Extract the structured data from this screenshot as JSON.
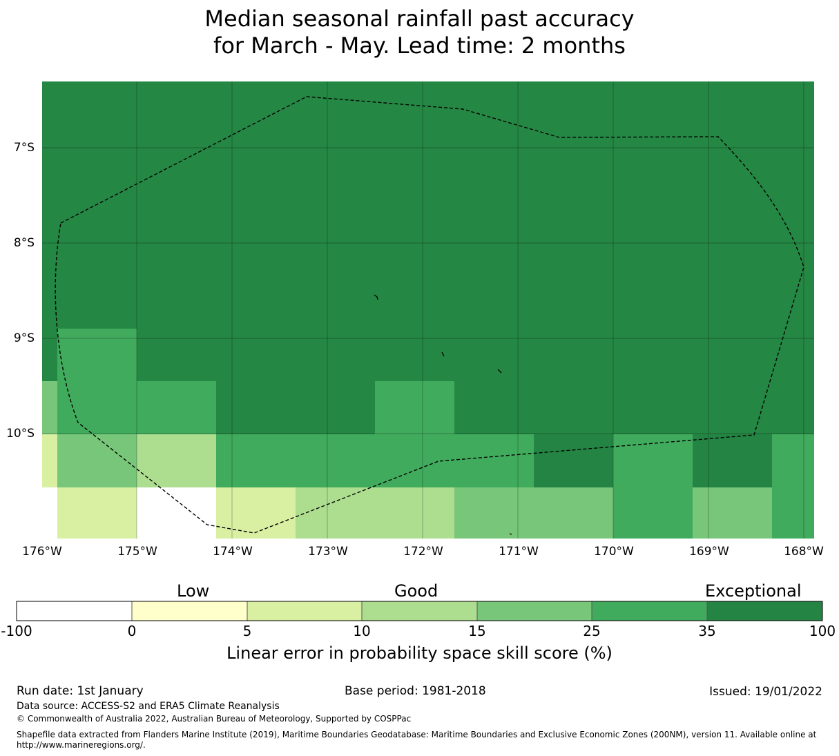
{
  "title": {
    "line1": "Median seasonal rainfall past accuracy",
    "line2": "for March - May. Lead time: 2 months"
  },
  "map": {
    "lat_labels": [
      "7°S",
      "8°S",
      "9°S",
      "10°S"
    ],
    "lon_labels": [
      "176°W",
      "175°W",
      "174°W",
      "173°W",
      "172°W",
      "171°W",
      "170°W",
      "169°W",
      "168°W"
    ],
    "eez_boundary": "dashed black",
    "background_color": "#258744"
  },
  "colorbar": {
    "categories": [
      "Low",
      "Good",
      "Exceptional"
    ],
    "ticks": [
      "-100",
      "0",
      "5",
      "10",
      "15",
      "25",
      "35",
      "100"
    ],
    "colors": [
      "#ffffff",
      "#ffffcc",
      "#d9f0a3",
      "#addd8e",
      "#78c679",
      "#41ab5d",
      "#238443"
    ],
    "label": "Linear error in probability space skill score (%)"
  },
  "footer": {
    "run_date": "Run date: 1st January",
    "base_period": "Base period: 1981-2018",
    "issued": "Issued: 19/01/2022",
    "data_source": "Data source: ACCESS-S2 and ERA5 Climate Reanalysis",
    "copyright": "© Commonwealth of Australia 2022, Australian Bureau of Meteorology, Supported by COSPPac",
    "shapefile_line1": "Shapefile data extracted from Flanders Marine Institute (2019), Maritime Boundaries Geodatabase: Maritime Boundaries and Exclusive Economic Zones (200NM), version 11. Available online at",
    "shapefile_line2": "http://www.marineregions.org/."
  }
}
